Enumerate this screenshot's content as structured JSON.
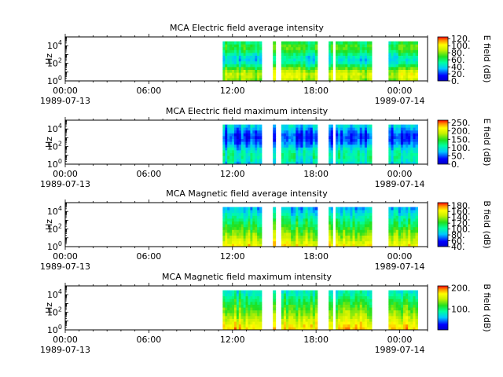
{
  "chart_data": [
    {
      "type": "heatmap",
      "title": "MCA  Electric field average intensity",
      "ylabel": "Hz",
      "colorbar_label": "E field (dB)",
      "colorbar_ticks": [
        "0.",
        "20.",
        "40.",
        "60.",
        "80.",
        "100.",
        "120."
      ],
      "colorbar_range": [
        0,
        125
      ],
      "x_ticks": [
        "00:00",
        "06:00",
        "12:00",
        "18:00",
        "00:00"
      ],
      "x_dates": [
        "1989-07-13",
        "1989-07-14"
      ],
      "x_range_hours": [
        0,
        26
      ],
      "y_ticks": [
        {
          "base": "10",
          "exp": "0"
        },
        {
          "base": "10",
          "exp": "2"
        },
        {
          "base": "10",
          "exp": "4"
        }
      ],
      "y_scale": "log",
      "y_range_hz": [
        1,
        100000
      ],
      "data_intervals_hours": [
        [
          11.3,
          14.1
        ],
        [
          14.9,
          15.1
        ],
        [
          15.5,
          18.1
        ],
        [
          18.9,
          19.2
        ],
        [
          19.4,
          22.0
        ],
        [
          23.2,
          25.3
        ]
      ],
      "colorscale": "rainbow"
    },
    {
      "type": "heatmap",
      "title": "MCA  Electric field maximum intensity",
      "ylabel": "Hz",
      "colorbar_label": "E field (dB)",
      "colorbar_ticks": [
        "0.",
        "50.",
        "100.",
        "150.",
        "200.",
        "250."
      ],
      "colorbar_range": [
        0,
        265
      ],
      "x_ticks": [
        "00:00",
        "06:00",
        "12:00",
        "18:00",
        "00:00"
      ],
      "x_dates": [
        "1989-07-13",
        "1989-07-14"
      ],
      "x_range_hours": [
        0,
        26
      ],
      "y_ticks": [
        {
          "base": "10",
          "exp": "0"
        },
        {
          "base": "10",
          "exp": "2"
        },
        {
          "base": "10",
          "exp": "4"
        }
      ],
      "y_scale": "log",
      "y_range_hz": [
        1,
        100000
      ],
      "data_intervals_hours": [
        [
          11.3,
          14.1
        ],
        [
          14.9,
          15.1
        ],
        [
          15.5,
          18.1
        ],
        [
          18.9,
          19.2
        ],
        [
          19.4,
          22.0
        ],
        [
          23.2,
          25.3
        ]
      ],
      "colorscale": "rainbow"
    },
    {
      "type": "heatmap",
      "title": "MCA  Magnetic field average intensity",
      "ylabel": "Hz",
      "colorbar_label": "B field (dB)",
      "colorbar_ticks": [
        "40.",
        "60.",
        "80.",
        "100.",
        "120.",
        "140.",
        "160.",
        "180."
      ],
      "colorbar_range": [
        40,
        190
      ],
      "x_ticks": [
        "00:00",
        "06:00",
        "12:00",
        "18:00",
        "00:00"
      ],
      "x_dates": [
        "1989-07-13",
        "1989-07-14"
      ],
      "x_range_hours": [
        0,
        26
      ],
      "y_ticks": [
        {
          "base": "10",
          "exp": "0"
        },
        {
          "base": "10",
          "exp": "2"
        },
        {
          "base": "10",
          "exp": "4"
        }
      ],
      "y_scale": "log",
      "y_range_hz": [
        1,
        100000
      ],
      "data_intervals_hours": [
        [
          11.3,
          14.1
        ],
        [
          14.9,
          15.1
        ],
        [
          15.5,
          18.1
        ],
        [
          18.9,
          19.2
        ],
        [
          19.4,
          22.0
        ],
        [
          23.2,
          25.3
        ]
      ],
      "colorscale": "rainbow"
    },
    {
      "type": "heatmap",
      "title": "MCA  Magnetic field maximum intensity",
      "ylabel": "Hz",
      "colorbar_label": "B field (dB)",
      "colorbar_ticks": [
        "100.",
        "200."
      ],
      "colorbar_range": [
        0,
        210
      ],
      "x_ticks": [
        "00:00",
        "06:00",
        "12:00",
        "18:00",
        "00:00"
      ],
      "x_dates": [
        "1989-07-13",
        "1989-07-14"
      ],
      "x_range_hours": [
        0,
        26
      ],
      "y_ticks": [
        {
          "base": "10",
          "exp": "0"
        },
        {
          "base": "10",
          "exp": "2"
        },
        {
          "base": "10",
          "exp": "4"
        }
      ],
      "y_scale": "log",
      "y_range_hz": [
        1,
        100000
      ],
      "data_intervals_hours": [
        [
          11.3,
          14.1
        ],
        [
          14.9,
          15.1
        ],
        [
          15.5,
          18.1
        ],
        [
          18.9,
          19.2
        ],
        [
          19.4,
          22.0
        ],
        [
          23.2,
          25.3
        ]
      ],
      "colorscale": "rainbow"
    }
  ]
}
